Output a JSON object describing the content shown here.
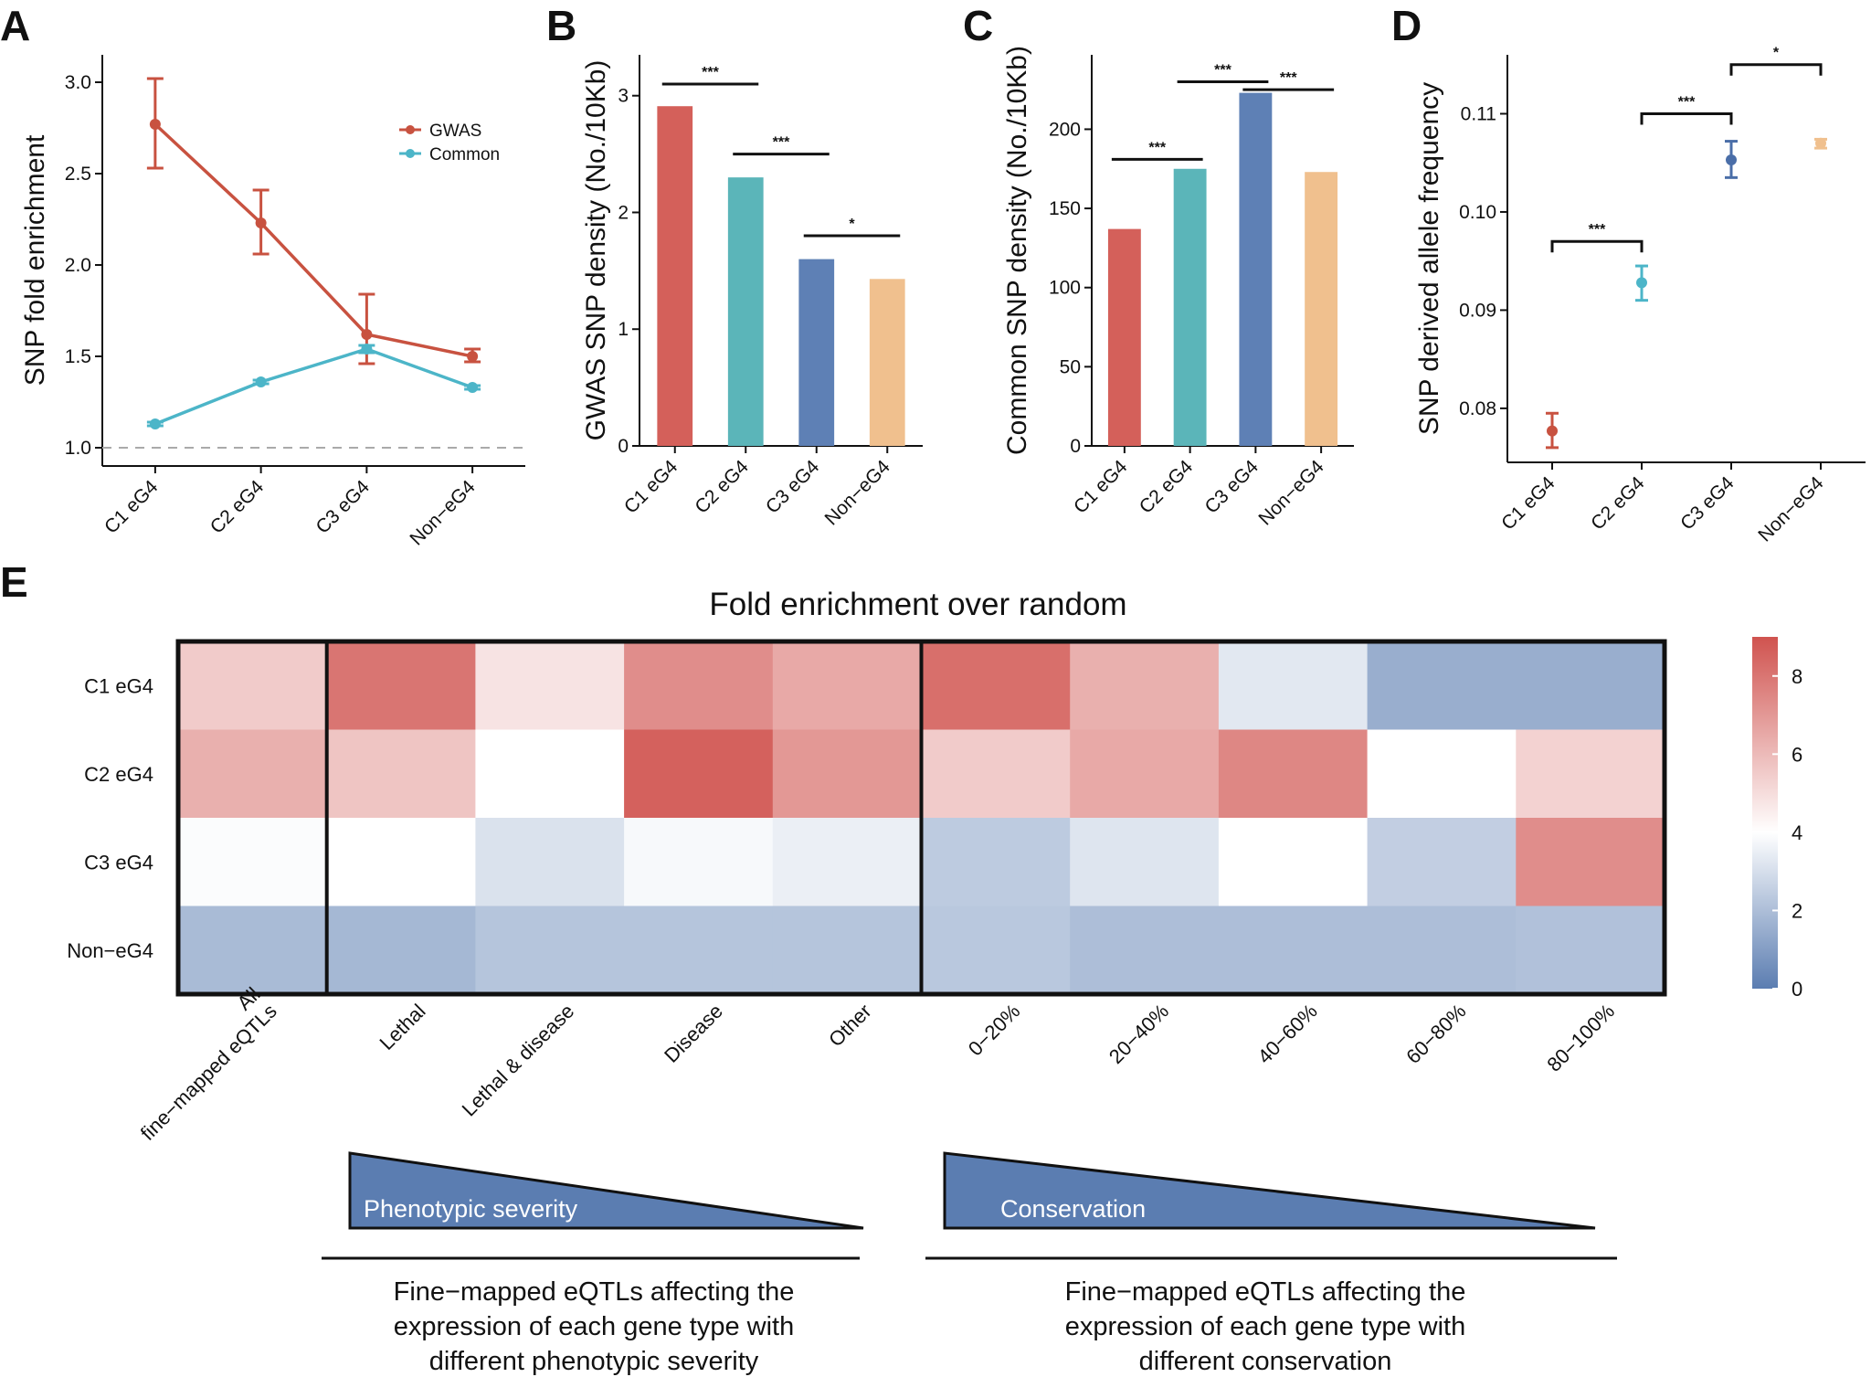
{
  "panels": {
    "A": {
      "letter": "A",
      "chart_data": {
        "type": "line",
        "categories": [
          "C1 eG4",
          "C2 eG4",
          "C3 eG4",
          "Non−eG4"
        ],
        "ylabel": "SNP fold enrichment",
        "ylim": [
          0.9,
          3.15
        ],
        "yticks": [
          "1.0",
          "1.5",
          "2.0",
          "2.5",
          "3.0"
        ],
        "ytick_values": [
          1.0,
          1.5,
          2.0,
          2.5,
          3.0
        ],
        "reference_line": 1.0,
        "legend_position": "top-right",
        "series": [
          {
            "name": "GWAS",
            "color": "#c85240",
            "values": [
              2.77,
              2.23,
              1.62,
              1.5
            ],
            "err_low": [
              2.53,
              2.06,
              1.46,
              1.47
            ],
            "err_high": [
              3.02,
              2.41,
              1.84,
              1.54
            ]
          },
          {
            "name": "Common",
            "color": "#4cb5c8",
            "values": [
              1.13,
              1.36,
              1.54,
              1.33
            ],
            "err_low": [
              1.12,
              1.35,
              1.52,
              1.32
            ],
            "err_high": [
              1.14,
              1.37,
              1.56,
              1.34
            ]
          }
        ]
      }
    },
    "B": {
      "letter": "B",
      "chart_data": {
        "type": "bar",
        "categories": [
          "C1 eG4",
          "C2 eG4",
          "C3 eG4",
          "Non−eG4"
        ],
        "values": [
          2.91,
          2.3,
          1.6,
          1.43
        ],
        "colors": [
          "#d4605a",
          "#5bb5b9",
          "#5e80b5",
          "#f0c08e"
        ],
        "ylabel": "GWAS SNP density (No./10Kb)",
        "ylim": [
          0,
          3.35
        ],
        "yticks": [
          "0",
          "1",
          "2",
          "3"
        ],
        "ytick_values": [
          0,
          1,
          2,
          3
        ],
        "significance": [
          {
            "from": 0,
            "to": 1,
            "label": "***",
            "level": 3.1
          },
          {
            "from": 1,
            "to": 2,
            "label": "***",
            "level": 2.5
          },
          {
            "from": 2,
            "to": 3,
            "label": "*",
            "level": 1.8
          }
        ]
      }
    },
    "C": {
      "letter": "C",
      "chart_data": {
        "type": "bar",
        "categories": [
          "C1 eG4",
          "C2 eG4",
          "C3 eG4",
          "Non−eG4"
        ],
        "values": [
          137,
          175,
          223,
          173
        ],
        "colors": [
          "#d4605a",
          "#5bb5b9",
          "#5e80b5",
          "#f0c08e"
        ],
        "ylabel": "Common SNP density (No./10Kb)",
        "ylim": [
          0,
          247
        ],
        "yticks": [
          "0",
          "50",
          "100",
          "150",
          "200"
        ],
        "ytick_values": [
          0,
          50,
          100,
          150,
          200
        ],
        "significance": [
          {
            "from": 0,
            "to": 1,
            "label": "***",
            "level": 181
          },
          {
            "from": 1,
            "to": 2,
            "label": "***",
            "level": 230
          },
          {
            "from": 2,
            "to": 3,
            "label": "***",
            "level": 225
          }
        ]
      }
    },
    "D": {
      "letter": "D",
      "chart_data": {
        "type": "scatter",
        "categories": [
          "C1 eG4",
          "C2 eG4",
          "C3 eG4",
          "Non−eG4"
        ],
        "values": [
          0.0777,
          0.0928,
          0.1053,
          0.107
        ],
        "err_low": [
          0.076,
          0.091,
          0.1035,
          0.1065
        ],
        "err_high": [
          0.0795,
          0.0945,
          0.1072,
          0.1074
        ],
        "colors": [
          "#c85240",
          "#4cb5c8",
          "#4a6ea8",
          "#f0c08e"
        ],
        "ylabel": "SNP derived allele frequency",
        "ylim": [
          0.0745,
          0.116
        ],
        "yticks": [
          "0.08",
          "0.09",
          "0.10",
          "0.11"
        ],
        "ytick_values": [
          0.08,
          0.09,
          0.1,
          0.11
        ],
        "significance": [
          {
            "from": 0,
            "to": 1,
            "label": "***",
            "level": 0.097
          },
          {
            "from": 1,
            "to": 2,
            "label": "***",
            "level": 0.11
          },
          {
            "from": 2,
            "to": 3,
            "label": "*",
            "level": 0.115
          }
        ]
      }
    },
    "E": {
      "letter": "E",
      "chart_data": {
        "type": "heatmap",
        "title": "Fold enrichment over random",
        "rows": [
          "C1 eG4",
          "C2 eG4",
          "C3 eG4",
          "Non−eG4"
        ],
        "columns": [
          "All\nfine−mapped eQTLs",
          "Lethal",
          "Lethal & disease",
          "Disease",
          "Other",
          "0−20%",
          "20−40%",
          "40−60%",
          "60−80%",
          "80−100%"
        ],
        "values": [
          [
            5.5,
            8.0,
            4.8,
            7.3,
            6.5,
            8.2,
            6.3,
            3.3,
            1.5,
            1.5
          ],
          [
            6.3,
            5.7,
            4.0,
            8.6,
            7.0,
            5.5,
            6.5,
            7.5,
            4.0,
            5.3
          ],
          [
            3.9,
            4.0,
            3.1,
            3.8,
            3.5,
            2.4,
            3.2,
            4.0,
            2.5,
            7.3
          ],
          [
            1.9,
            1.8,
            2.2,
            2.2,
            2.2,
            2.3,
            2.0,
            2.0,
            2.0,
            2.1
          ]
        ],
        "colorbar": {
          "min": 0,
          "max": 9,
          "mid": 4,
          "ticks": [
            "0",
            "2",
            "4",
            "6",
            "8"
          ],
          "tick_values": [
            0,
            2,
            4,
            6,
            8
          ],
          "low_color": "#5b7db1",
          "mid_color": "#ffffff",
          "high_color": "#d0534f"
        },
        "groups": [
          {
            "triangle_label": "Phenotypic severity",
            "caption": [
              "Fine−mapped eQTLs affecting the",
              "expression of each gene type with",
              "different phenotypic severity"
            ]
          },
          {
            "triangle_label": "Conservation",
            "caption": [
              "Fine−mapped eQTLs affecting the",
              "expression of each gene type with",
              "different conservation"
            ]
          }
        ]
      }
    }
  }
}
